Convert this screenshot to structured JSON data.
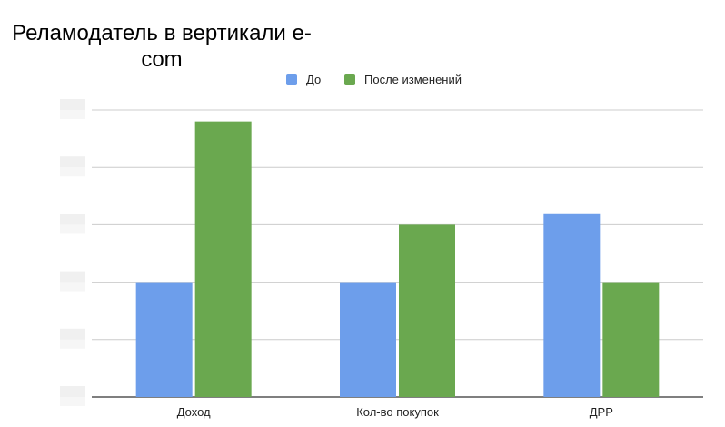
{
  "chart_data": {
    "type": "bar",
    "title": "Реламодатель в вертикали e-com",
    "categories": [
      "Доход",
      "Кол-во покупок",
      "ДРР"
    ],
    "series": [
      {
        "name": "До",
        "values": [
          2,
          2,
          3.2
        ],
        "color": "#6d9eeb"
      },
      {
        "name": "После изменений",
        "values": [
          4.8,
          3,
          2
        ],
        "color": "#6aa84f"
      }
    ],
    "ylim": [
      0,
      5
    ],
    "y_ticks": [
      0,
      1,
      2,
      3,
      4,
      5
    ],
    "y_tick_labels_visible": false,
    "grid": true,
    "legend_position": "top"
  }
}
